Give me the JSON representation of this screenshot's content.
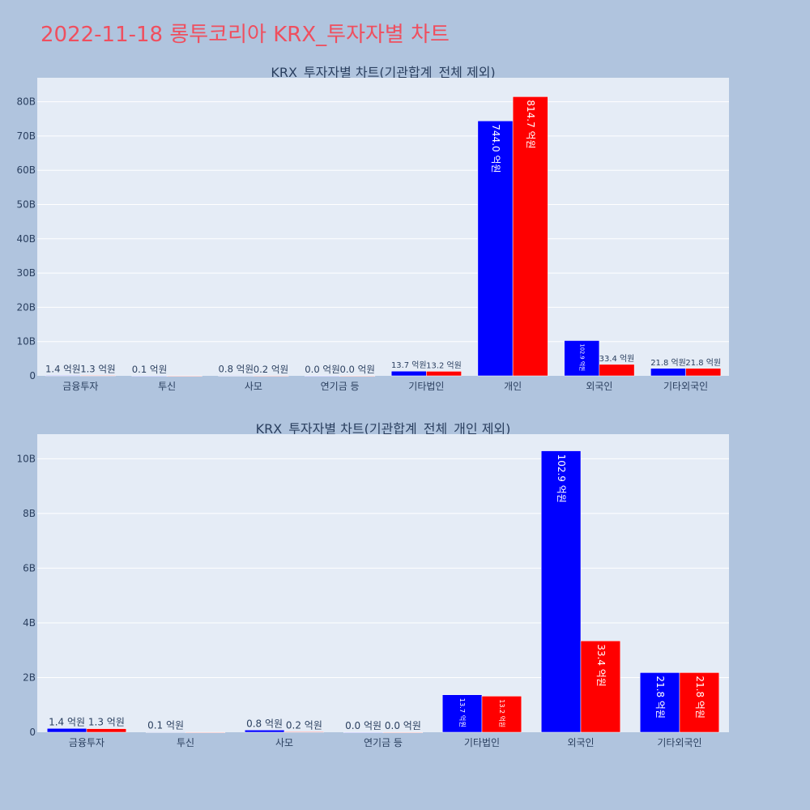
{
  "page_title": "2022-11-18 롱투코리아 KRX_투자자별 차트",
  "colors": {
    "buy": "#0000ff",
    "sell": "#ff0000",
    "plot_bg": "#e5ecf6",
    "page_bg": "#b0c4de",
    "title": "#ef4f5f"
  },
  "chart_data": [
    {
      "type": "bar",
      "title": "KRX_투자자별 차트(기관합계_전체 제외)",
      "categories": [
        "금융투자",
        "투신",
        "사모",
        "연기금 등",
        "기타법인",
        "개인",
        "외국인",
        "기타외국인"
      ],
      "ylim": [
        0,
        87
      ],
      "y_ticks": [
        0,
        10,
        20,
        30,
        40,
        50,
        60,
        70,
        80
      ],
      "y_tick_labels": [
        "0",
        "10B",
        "20B",
        "30B",
        "40B",
        "50B",
        "60B",
        "70B",
        "80B"
      ],
      "series": [
        {
          "color": "#0000ff",
          "values": [
            0.14,
            0.01,
            0.08,
            0.0,
            1.37,
            74.4,
            10.29,
            2.18
          ],
          "labels": [
            "1.4 억원",
            "0.1 억원",
            "0.8 억원",
            "0.0 억원",
            "13.7 억원",
            "744.0 억원",
            "102.9 억원",
            "21.8 억원"
          ]
        },
        {
          "color": "#ff0000",
          "values": [
            0.13,
            0.0,
            0.02,
            0.0,
            1.32,
            81.47,
            3.34,
            2.18
          ],
          "labels": [
            "1.3 억원",
            "",
            "0.2 억원",
            "0.0 억원",
            "13.2 억원",
            "814.7 억원",
            "33.4 억원",
            "21.8 억원"
          ]
        }
      ]
    },
    {
      "type": "bar",
      "title": "KRX_투자자별 차트(기관합계_전체_개인 제외)",
      "categories": [
        "금융투자",
        "투신",
        "사모",
        "연기금 등",
        "기타법인",
        "외국인",
        "기타외국인"
      ],
      "ylim": [
        0,
        10.9
      ],
      "y_ticks": [
        0,
        2,
        4,
        6,
        8,
        10
      ],
      "y_tick_labels": [
        "0",
        "2B",
        "4B",
        "6B",
        "8B",
        "10B"
      ],
      "series": [
        {
          "color": "#0000ff",
          "values": [
            0.14,
            0.01,
            0.08,
            0.0,
            1.37,
            10.29,
            2.18
          ],
          "labels": [
            "1.4 억원",
            "0.1 억원",
            "0.8 억원",
            "0.0 억원",
            "13.7 억원",
            "102.9 억원",
            "21.8 억원"
          ]
        },
        {
          "color": "#ff0000",
          "values": [
            0.13,
            0.0,
            0.02,
            0.0,
            1.32,
            3.34,
            2.18
          ],
          "labels": [
            "1.3 억원",
            "",
            "0.2 억원",
            "0.0 억원",
            "13.2 억원",
            "33.4 억원",
            "21.8 억원"
          ]
        }
      ]
    }
  ]
}
